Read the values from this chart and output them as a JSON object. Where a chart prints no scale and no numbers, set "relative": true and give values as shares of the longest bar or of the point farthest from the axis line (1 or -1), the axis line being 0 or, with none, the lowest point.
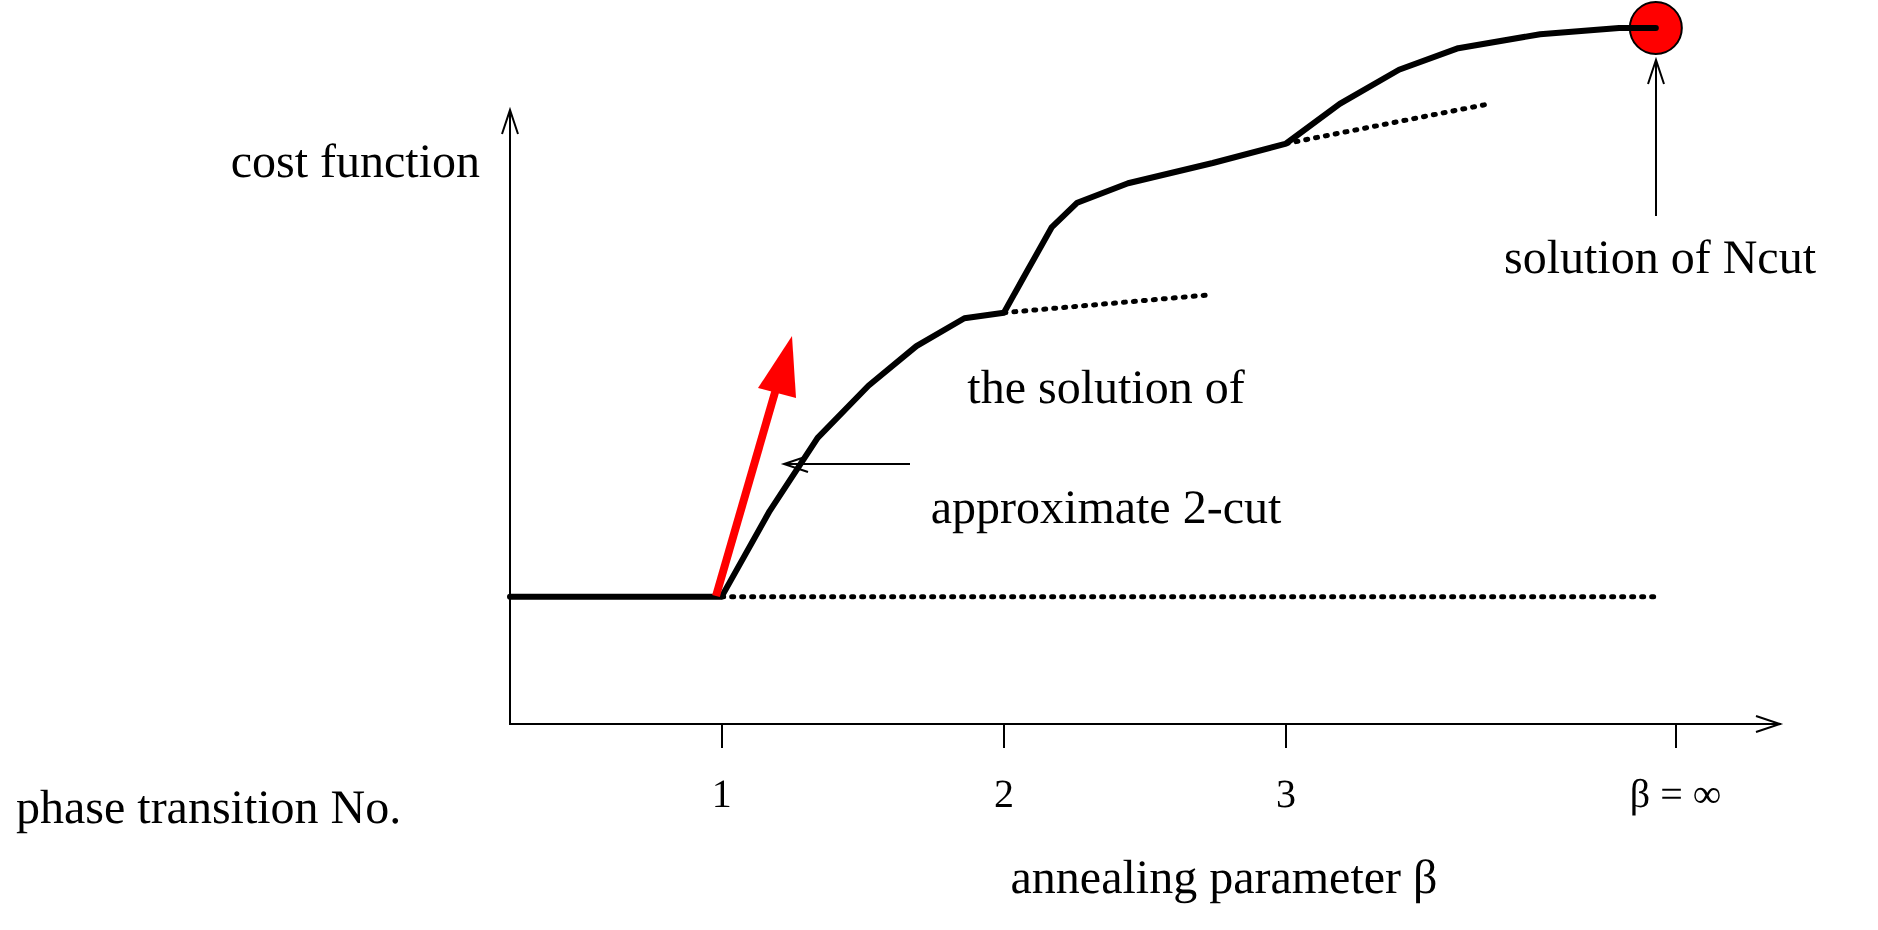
{
  "chart_data": {
    "type": "line",
    "relative": true,
    "xlabel": "annealing parameter β",
    "ylabel": "cost function",
    "xlim": [
      0.25,
      4.75
    ],
    "xticks": [
      1,
      2,
      3,
      {
        "value": 4.38,
        "label": "β = ∞"
      }
    ],
    "series": [
      {
        "color": "#000000",
        "line_style": "solid",
        "x": [
          0.25,
          1,
          1.17,
          1.34,
          1.52,
          1.69,
          1.86,
          2,
          2.08,
          2.17,
          2.26,
          2.44,
          2.74,
          3,
          3.19,
          3.4,
          3.61,
          3.9,
          4.18,
          4.31
        ],
        "values": [
          0.183,
          0.183,
          0.306,
          0.411,
          0.486,
          0.543,
          0.583,
          0.591,
          0.649,
          0.714,
          0.749,
          0.777,
          0.806,
          0.834,
          0.891,
          0.94,
          0.971,
          0.991,
          1,
          1
        ]
      },
      {
        "color": "#000000",
        "line_style": "dotted",
        "x": [
          1,
          4.32
        ],
        "values": [
          0.183,
          0.183
        ]
      },
      {
        "color": "#000000",
        "line_style": "dotted",
        "x": [
          2,
          2.74
        ],
        "values": [
          0.591,
          0.617
        ]
      },
      {
        "color": "#000000",
        "line_style": "dotted",
        "x": [
          3,
          3.72
        ],
        "values": [
          0.834,
          0.891
        ]
      },
      {
        "type": "scatter",
        "marker": "circle",
        "color": "#ff0000",
        "x": [
          4.31
        ],
        "values": [
          1
        ]
      }
    ],
    "annotations": [
      "phase transition No.",
      "the solution of",
      "approximate 2-cut",
      "solution of Ncut"
    ]
  }
}
